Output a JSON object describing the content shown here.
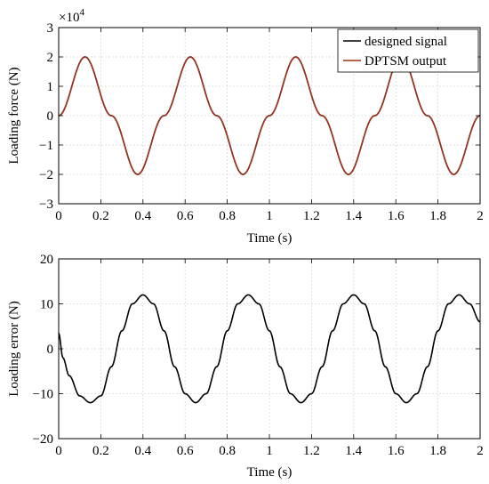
{
  "chart_data": [
    {
      "type": "line",
      "xlabel": "Time (s)",
      "ylabel": "Loading force (N)",
      "xlim": [
        0,
        2
      ],
      "ylim": [
        -3,
        3
      ],
      "x_ticks": [
        "0",
        "0.2",
        "0.4",
        "0.6",
        "0.8",
        "1",
        "1.2",
        "1.4",
        "1.6",
        "1.8",
        "2"
      ],
      "y_ticks": [
        "-3",
        "-2",
        "-1",
        "0",
        "1",
        "2",
        "3"
      ],
      "y_multiplier_label": "×10",
      "y_multiplier_exponent": "4",
      "grid": true,
      "legend_position": "top-right",
      "x": [
        0,
        0.125,
        0.25,
        0.375,
        0.5,
        0.625,
        0.75,
        0.875,
        1.0,
        1.125,
        1.25,
        1.375,
        1.5,
        1.625,
        1.75,
        1.875,
        2.0
      ],
      "series": [
        {
          "name": "designed signal",
          "color": "#000000",
          "values": [
            0,
            2,
            0,
            -2,
            0,
            2,
            0,
            -2,
            0,
            2,
            0,
            -2,
            0,
            2,
            0,
            -2,
            0
          ]
        },
        {
          "name": "DPTSM output",
          "color": "#a0341c",
          "values": [
            0,
            2,
            0,
            -2,
            0,
            2,
            0,
            -2,
            0,
            2,
            0,
            -2,
            0,
            2,
            0,
            -2,
            0
          ]
        }
      ]
    },
    {
      "type": "line",
      "xlabel": "Time (s)",
      "ylabel": "Loading error (N)",
      "xlim": [
        0,
        2
      ],
      "ylim": [
        -20,
        20
      ],
      "x_ticks": [
        "0",
        "0.2",
        "0.4",
        "0.6",
        "0.8",
        "1",
        "1.2",
        "1.4",
        "1.6",
        "1.8",
        "2"
      ],
      "y_ticks": [
        "-20",
        "-10",
        "0",
        "10",
        "20"
      ],
      "grid": true,
      "x": [
        0,
        0.02,
        0.05,
        0.1,
        0.15,
        0.2,
        0.25,
        0.3,
        0.35,
        0.4,
        0.45,
        0.5,
        0.55,
        0.6,
        0.65,
        0.7,
        0.75,
        0.8,
        0.85,
        0.9,
        0.95,
        1.0,
        1.05,
        1.1,
        1.15,
        1.2,
        1.25,
        1.3,
        1.35,
        1.4,
        1.45,
        1.5,
        1.55,
        1.6,
        1.65,
        1.7,
        1.75,
        1.8,
        1.85,
        1.9,
        1.95,
        2.0
      ],
      "series": [
        {
          "color": "#000000",
          "values": [
            3.5,
            -2,
            -6,
            -10.5,
            -12,
            -10.5,
            -4,
            4,
            10,
            12,
            10,
            4,
            -4,
            -10,
            -12,
            -10,
            -4,
            4,
            10,
            12,
            10,
            4,
            -4,
            -10,
            -12,
            -10,
            -4,
            4,
            10,
            12,
            10,
            4,
            -4,
            -10,
            -12,
            -10,
            -4,
            4,
            10,
            12,
            10,
            6
          ]
        }
      ]
    }
  ]
}
